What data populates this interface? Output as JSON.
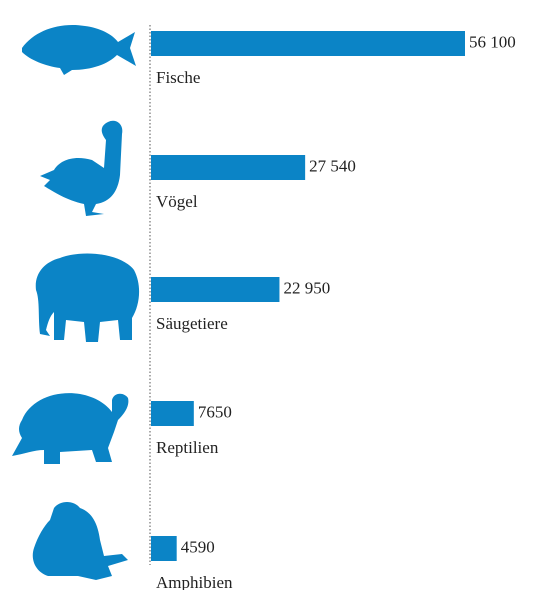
{
  "chart_data": {
    "type": "bar",
    "orientation": "horizontal",
    "categories": [
      "Fische",
      "Vögel",
      "Säugetiere",
      "Reptilien",
      "Amphibien"
    ],
    "values": [
      56100,
      27540,
      22950,
      7650,
      4590
    ],
    "value_labels": [
      "56 100",
      "27 540",
      "22 950",
      "7650",
      "4590"
    ],
    "color": "#0b84c6"
  }
}
